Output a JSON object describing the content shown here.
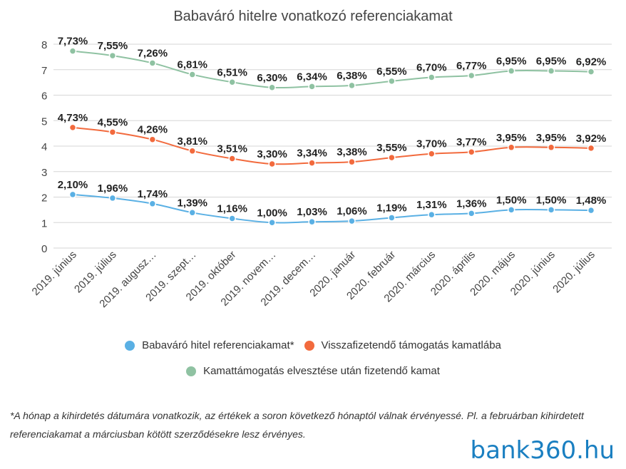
{
  "chart_data": {
    "type": "line",
    "title": "Babaváró hitelre vonatkozó referenciakamat",
    "xlabel": "",
    "ylabel": "",
    "ylim": [
      0,
      8
    ],
    "yticks": [
      0,
      1,
      2,
      3,
      4,
      5,
      6,
      7,
      8
    ],
    "grid": true,
    "legend_position": "bottom",
    "categories": [
      "2019. június",
      "2019. július",
      "2019. augusz…",
      "2019. szept…",
      "2019. október",
      "2019. novem…",
      "2019. decem…",
      "2020. január",
      "2020. február",
      "2020. március",
      "2020. április",
      "2020. május",
      "2020. június",
      "2020. július"
    ],
    "series": [
      {
        "name": "Babaváró hitel referenciakamat*",
        "color": "#5ab0e4",
        "values": [
          2.1,
          1.96,
          1.74,
          1.39,
          1.16,
          1.0,
          1.03,
          1.06,
          1.19,
          1.31,
          1.36,
          1.5,
          1.5,
          1.48
        ],
        "labels": [
          "2,10%",
          "1,96%",
          "1,74%",
          "1,39%",
          "1,16%",
          "1,00%",
          "1,03%",
          "1,06%",
          "1,19%",
          "1,31%",
          "1,36%",
          "1,50%",
          "1,50%",
          "1,48%"
        ]
      },
      {
        "name": "Visszafizetendő támogatás kamatlába",
        "color": "#f26a3d",
        "values": [
          4.73,
          4.55,
          4.26,
          3.81,
          3.51,
          3.3,
          3.34,
          3.38,
          3.55,
          3.7,
          3.77,
          3.95,
          3.95,
          3.92
        ],
        "labels": [
          "4,73%",
          "4,55%",
          "4,26%",
          "3,81%",
          "3,51%",
          "3,30%",
          "3,34%",
          "3,38%",
          "3,55%",
          "3,70%",
          "3,77%",
          "3,95%",
          "3,95%",
          "3,92%"
        ]
      },
      {
        "name": "Kamattámogatás elvesztése után fizetendő kamat",
        "color": "#8fc2a2",
        "values": [
          7.73,
          7.55,
          7.26,
          6.81,
          6.51,
          6.3,
          6.34,
          6.38,
          6.55,
          6.7,
          6.77,
          6.95,
          6.95,
          6.92
        ],
        "labels": [
          "7,73%",
          "7,55%",
          "7,26%",
          "6,81%",
          "6,51%",
          "6,30%",
          "6,34%",
          "6,38%",
          "6,55%",
          "6,70%",
          "6,77%",
          "6,95%",
          "6,95%",
          "6,92%"
        ]
      }
    ]
  },
  "footnote": "*A hónap a kihirdetés dátumára vonatkozik, az értékek a soron következő hónaptól válnak érvényessé. Pl. a februárban kihirdetett referenciakamat a márciusban kötött szerződésekre lesz érvényes.",
  "logo": "bank360.hu"
}
